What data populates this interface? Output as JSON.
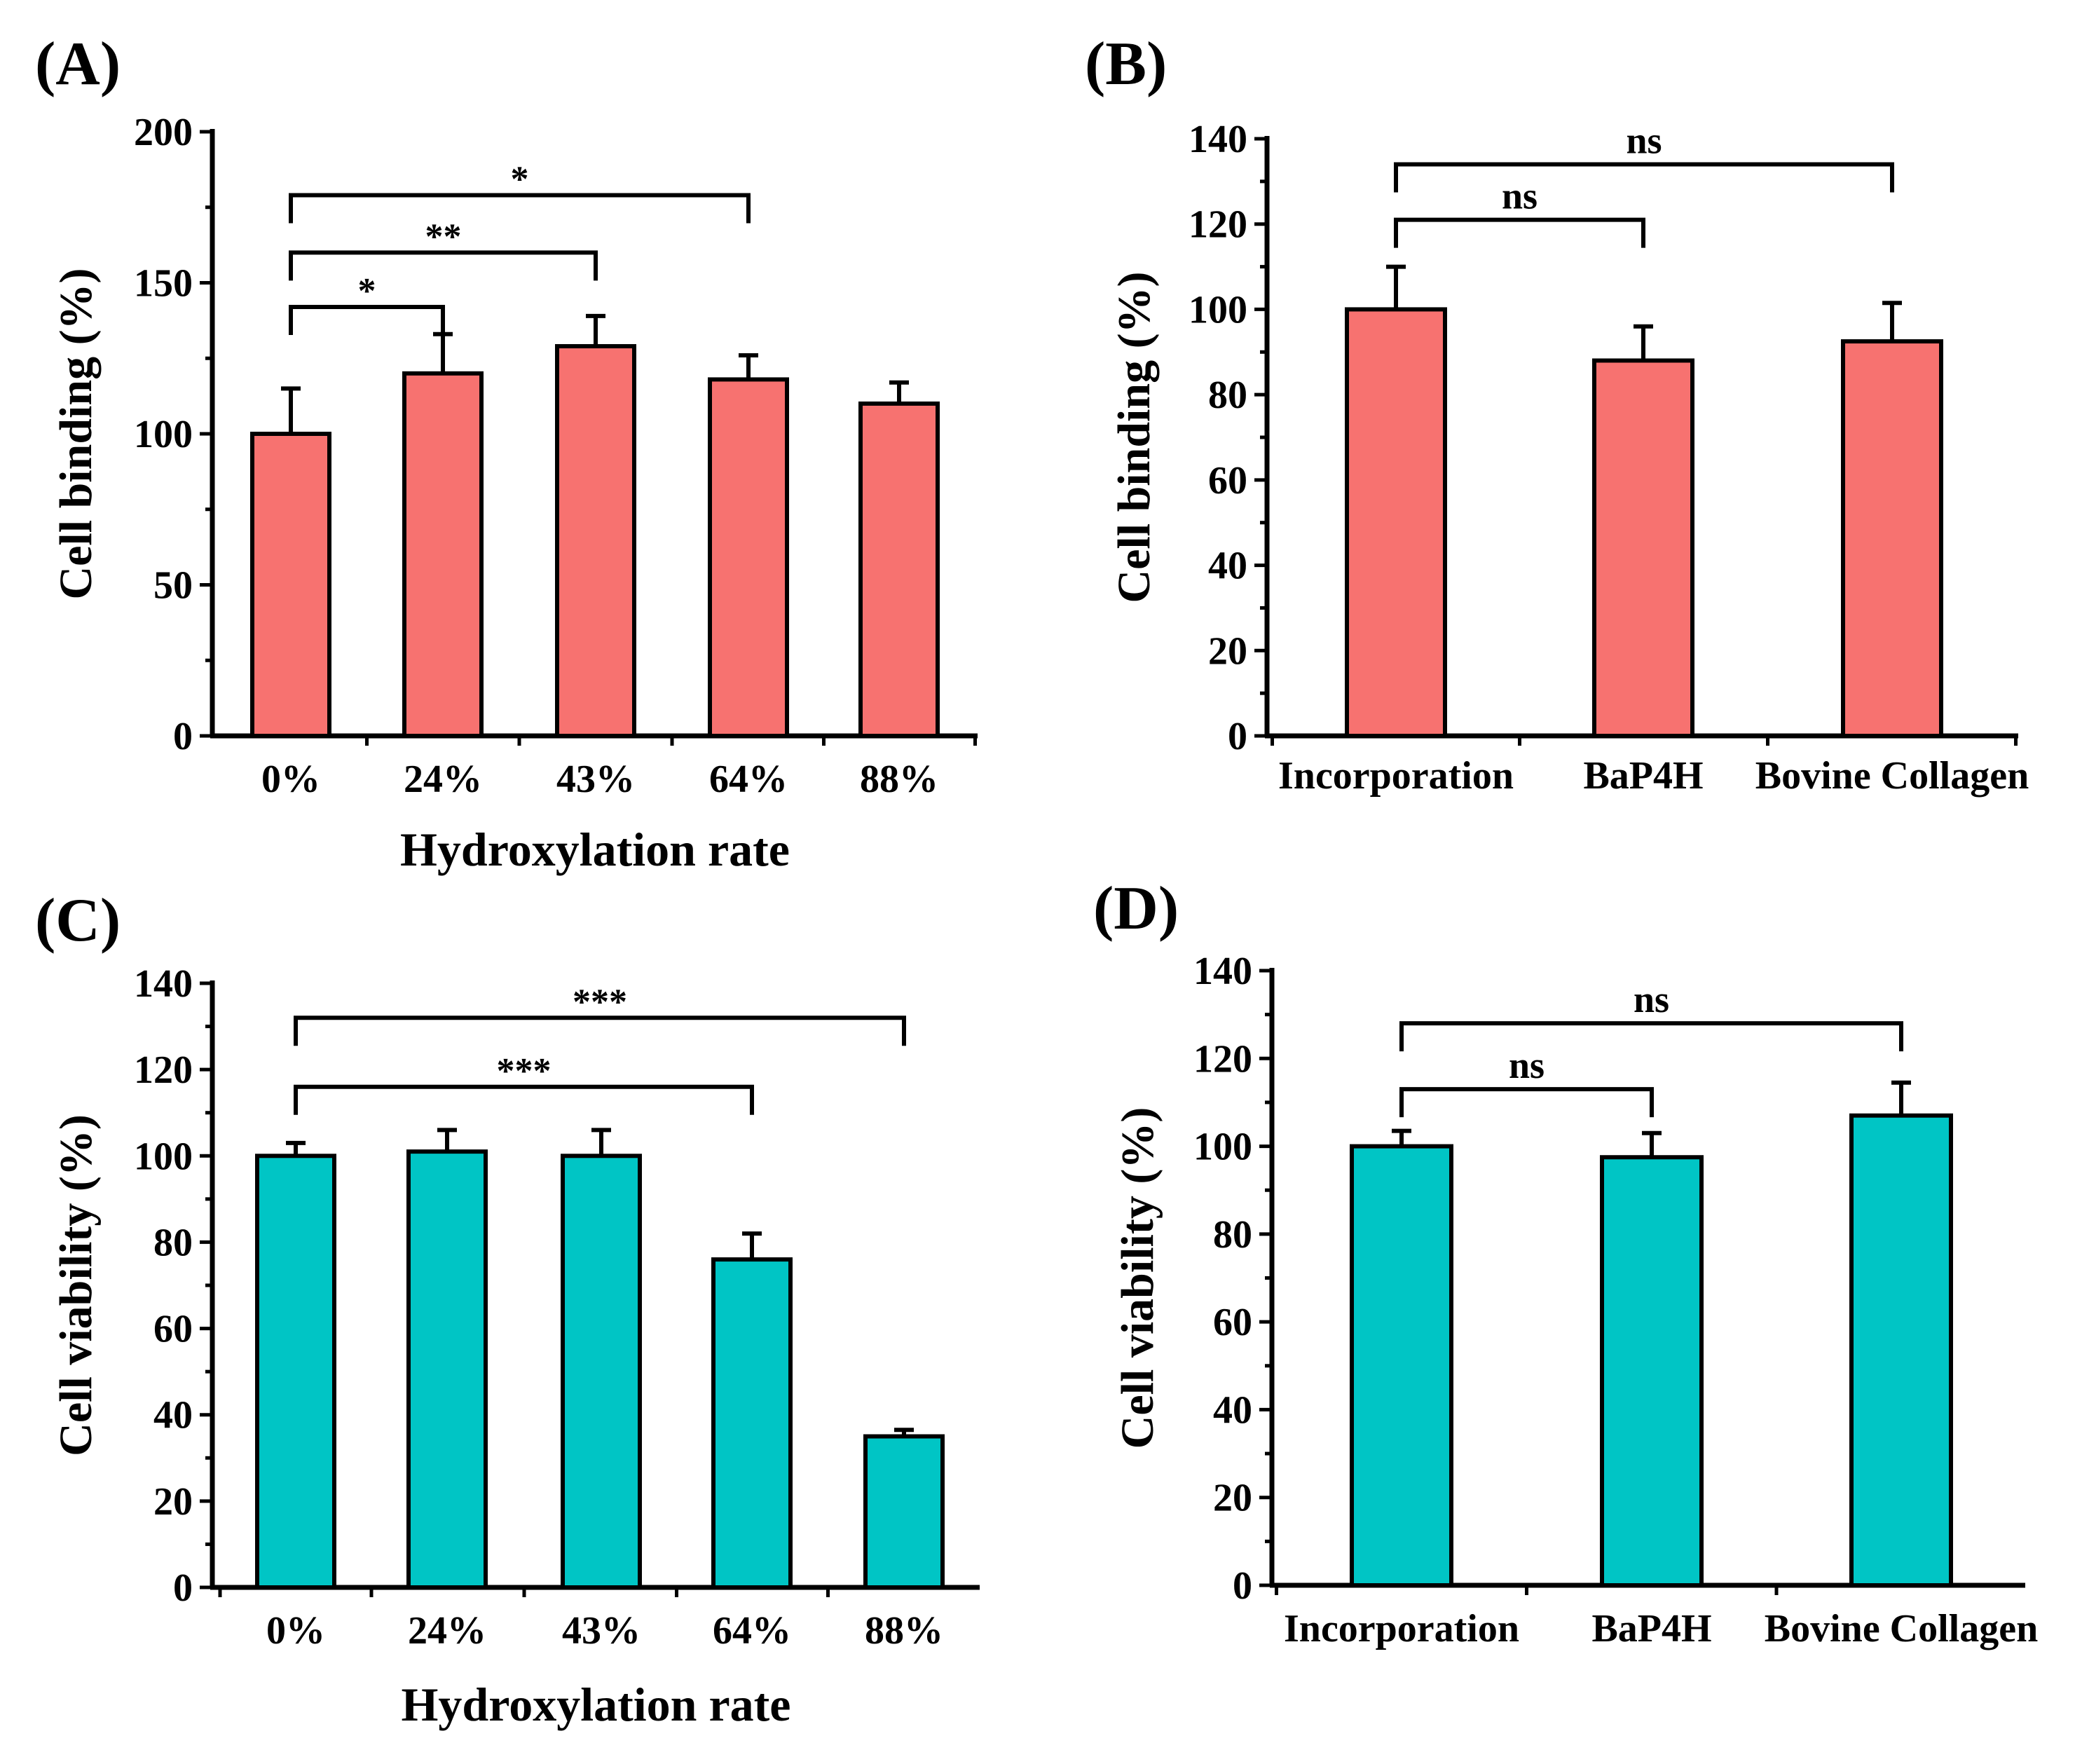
{
  "chart_data": [
    {
      "panel": "(A)",
      "type": "bar",
      "color": "#F77270",
      "categories": [
        "0%",
        "24%",
        "43%",
        "64%",
        "88%"
      ],
      "values": [
        100,
        120,
        129,
        118,
        110
      ],
      "errors": [
        15,
        13,
        10,
        8,
        7
      ],
      "xlabel": "Hydroxylation rate",
      "ylabel": "Cell binding (%)",
      "ylim": [
        0,
        200
      ],
      "yticks": [
        0,
        50,
        100,
        150,
        200
      ],
      "ytick_labels": [
        "0",
        "50",
        "100",
        "150",
        "200"
      ],
      "significance": [
        {
          "from": 0,
          "to": 1,
          "label": "*",
          "level": 142
        },
        {
          "from": 0,
          "to": 2,
          "label": "**",
          "level": 160
        },
        {
          "from": 0,
          "to": 3,
          "label": "*",
          "level": 179
        }
      ]
    },
    {
      "panel": "(B)",
      "type": "bar",
      "color": "#F77270",
      "categories": [
        "Incorporation",
        "BaP4H",
        "Bovine Collagen"
      ],
      "values": [
        100,
        88,
        92.5
      ],
      "errors": [
        10,
        8,
        9
      ],
      "xlabel": "",
      "ylabel": "Cell binding (%)",
      "ylim": [
        0,
        140
      ],
      "yticks": [
        0,
        20,
        40,
        60,
        80,
        100,
        120,
        140
      ],
      "ytick_labels": [
        "0",
        "20",
        "40",
        "60",
        "80",
        "100",
        "120",
        "140"
      ],
      "significance": [
        {
          "from": 0,
          "to": 1,
          "label": "ns",
          "level": 121
        },
        {
          "from": 0,
          "to": 2,
          "label": "ns",
          "level": 134
        }
      ]
    },
    {
      "panel": "(C)",
      "type": "bar",
      "color": "#00C5C5",
      "categories": [
        "0%",
        "24%",
        "43%",
        "64%",
        "88%"
      ],
      "values": [
        100,
        101,
        100,
        76,
        35
      ],
      "errors": [
        3,
        5,
        6,
        6,
        1.5
      ],
      "xlabel": "Hydroxylation rate",
      "ylabel": "Cell viability (%)",
      "ylim": [
        0,
        140
      ],
      "yticks": [
        0,
        20,
        40,
        60,
        80,
        100,
        120,
        140
      ],
      "ytick_labels": [
        "0",
        "20",
        "40",
        "60",
        "80",
        "100",
        "120",
        "140"
      ],
      "significance": [
        {
          "from": 0,
          "to": 3,
          "label": "***",
          "level": 116
        },
        {
          "from": 0,
          "to": 4,
          "label": "***",
          "level": 132
        }
      ]
    },
    {
      "panel": "(D)",
      "type": "bar",
      "color": "#00C5C5",
      "categories": [
        "Incorporation",
        "BaP4H",
        "Bovine Collagen"
      ],
      "values": [
        100,
        97.5,
        107
      ],
      "errors": [
        3.5,
        5.5,
        7.5
      ],
      "xlabel": "",
      "ylabel": "Cell viability (%)",
      "ylim": [
        0,
        140
      ],
      "yticks": [
        0,
        20,
        40,
        60,
        80,
        100,
        120,
        140
      ],
      "ytick_labels": [
        "0",
        "20",
        "40",
        "60",
        "80",
        "100",
        "120",
        "140"
      ],
      "significance": [
        {
          "from": 0,
          "to": 1,
          "label": "ns",
          "level": 113
        },
        {
          "from": 0,
          "to": 2,
          "label": "ns",
          "level": 128
        }
      ]
    }
  ]
}
